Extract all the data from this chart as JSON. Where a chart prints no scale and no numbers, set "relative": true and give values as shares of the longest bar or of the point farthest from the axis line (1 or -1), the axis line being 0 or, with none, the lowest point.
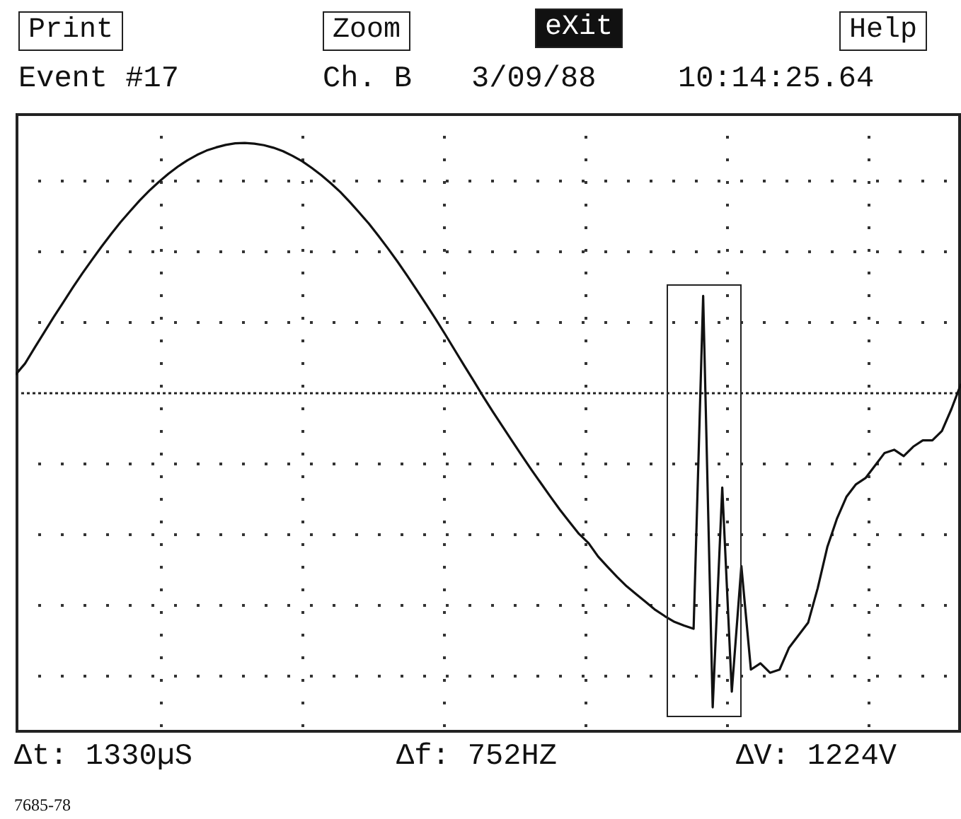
{
  "chart_data": {
    "type": "line",
    "relative": true,
    "grid": true,
    "line_style": "solid",
    "marker": "none",
    "categories": [
      null,
      null,
      null,
      null,
      null,
      null,
      null,
      null,
      null,
      null,
      null,
      null,
      null,
      null,
      null,
      null,
      null,
      null,
      null,
      null,
      null,
      null,
      null,
      null,
      null,
      null,
      null,
      null,
      null,
      null,
      null,
      null,
      null,
      null,
      null,
      null,
      null,
      null,
      null,
      null,
      null,
      null,
      null,
      null,
      null,
      null,
      null,
      null,
      null,
      null,
      null,
      null,
      null,
      null,
      null,
      null,
      null,
      null,
      null,
      null,
      null,
      null,
      null,
      null,
      null,
      null,
      null,
      null,
      null,
      null,
      null,
      null,
      null,
      null,
      null,
      null,
      null,
      null,
      null,
      null,
      null,
      null,
      null,
      null,
      null,
      null,
      null,
      null,
      null,
      null,
      null,
      null,
      null,
      null,
      null,
      null,
      null,
      null,
      null,
      null
    ],
    "series": [
      {
        "color": "#111111",
        "values": [
          0.059,
          0.095,
          0.145,
          0.194,
          0.243,
          0.29,
          0.337,
          0.382,
          0.425,
          0.467,
          0.507,
          0.545,
          0.58,
          0.614,
          0.645,
          0.673,
          0.699,
          0.722,
          0.742,
          0.759,
          0.773,
          0.783,
          0.791,
          0.796,
          0.797,
          0.795,
          0.79,
          0.782,
          0.771,
          0.756,
          0.739,
          0.718,
          0.695,
          0.669,
          0.641,
          0.609,
          0.575,
          0.54,
          0.501,
          0.461,
          0.419,
          0.375,
          0.329,
          0.283,
          0.236,
          0.187,
          0.137,
          0.087,
          0.038,
          -0.012,
          -0.06,
          -0.106,
          -0.152,
          -0.198,
          -0.243,
          -0.286,
          -0.329,
          -0.371,
          -0.41,
          -0.448,
          -0.477,
          -0.52,
          -0.553,
          -0.585,
          -0.615,
          -0.64,
          -0.665,
          -0.69,
          -0.71,
          -0.728,
          -0.74,
          -0.75,
          0.31,
          -1,
          -0.3,
          -0.95,
          -0.55,
          -0.88,
          -0.86,
          -0.89,
          -0.88,
          -0.81,
          -0.77,
          -0.73,
          -0.62,
          -0.49,
          -0.4,
          -0.33,
          -0.29,
          -0.27,
          -0.23,
          -0.19,
          -0.18,
          -0.2,
          -0.17,
          -0.15,
          -0.15,
          -0.12,
          -0.05,
          0.03
        ]
      }
    ],
    "ref_lines": [
      {
        "axis": "y",
        "value": 0,
        "line_style": "dotted",
        "color": "#222222"
      }
    ],
    "annotations": [
      "Print",
      "Zoom",
      "eXit",
      "Help",
      "Event #17",
      "Ch. B",
      "3/09/88",
      "10:14:25.64",
      "Δt: 1330µS",
      "Δf: 752HZ",
      "ΔV: 1224V",
      "7685-78"
    ]
  }
}
